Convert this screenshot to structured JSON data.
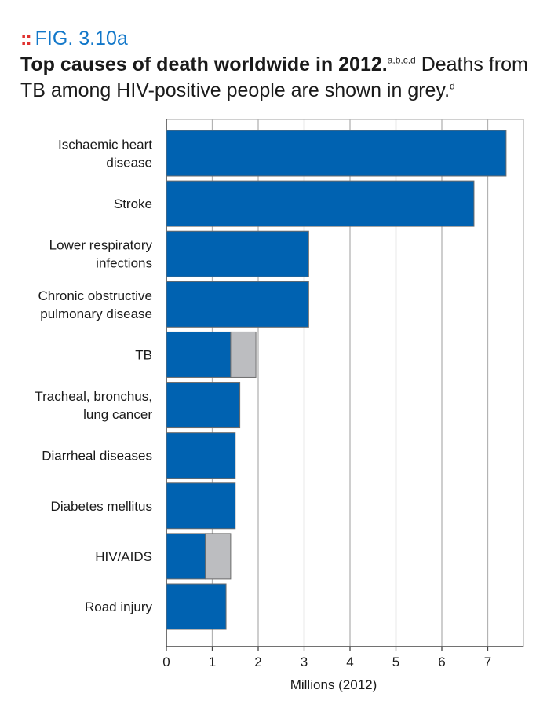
{
  "figure": {
    "marker": "::",
    "label": "FIG. 3.10a",
    "title_bold": "Top causes of death worldwide in 2012.",
    "title_sup": "a,b,c,d",
    "title_rest": "Deaths from TB among HIV-positive people are shown in grey.",
    "title_rest_sup": "d"
  },
  "colors": {
    "primary_bar": "#0062b1",
    "hiv_bar": "#bcbdc0",
    "bar_outline": "#6b6b6b",
    "grid": "#b3b3b3",
    "accent_marker": "#e0312f",
    "fig_label": "#1177c9"
  },
  "chart_data": {
    "type": "bar",
    "orientation": "horizontal",
    "stacked": true,
    "categories": [
      [
        "Ischaemic heart",
        "disease"
      ],
      [
        "Stroke"
      ],
      [
        "Lower respiratory",
        "infections"
      ],
      [
        "Chronic obstructive",
        "pulmonary disease"
      ],
      [
        "TB"
      ],
      [
        "Tracheal, bronchus,",
        "lung cancer"
      ],
      [
        "Diarrheal diseases"
      ],
      [
        "Diabetes mellitus"
      ],
      [
        "HIV/AIDS"
      ],
      [
        "Road injury"
      ]
    ],
    "series": [
      {
        "values": [
          7.4,
          6.7,
          3.1,
          3.1,
          1.4,
          1.6,
          1.5,
          1.5,
          0.85,
          1.3
        ]
      },
      {
        "values": [
          0,
          0,
          0,
          0,
          0.55,
          0,
          0,
          0,
          0.55,
          0
        ]
      }
    ],
    "xlabel": "Millions (2012)",
    "xticks": [
      0,
      1,
      2,
      3,
      4,
      5,
      6,
      7
    ],
    "xlim": [
      0,
      7.8
    ],
    "grid": true
  }
}
